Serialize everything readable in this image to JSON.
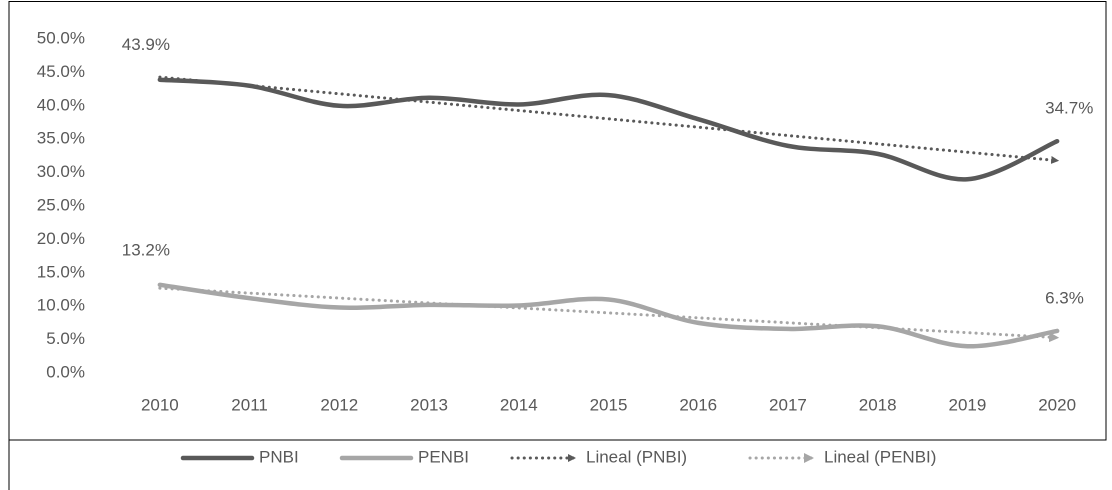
{
  "chart_data": {
    "type": "line",
    "smooth": true,
    "grid": false,
    "legend": "bottom",
    "categories": [
      "2010",
      "2011",
      "2012",
      "2013",
      "2014",
      "2015",
      "2016",
      "2017",
      "2018",
      "2019",
      "2020"
    ],
    "ylim": [
      0,
      50
    ],
    "yticks": [
      {
        "value": 0,
        "label": "0.0%"
      },
      {
        "value": 5,
        "label": "5.0%"
      },
      {
        "value": 10,
        "label": "10.0%"
      },
      {
        "value": 15,
        "label": "15.0%"
      },
      {
        "value": 20,
        "label": "20.0%"
      },
      {
        "value": 25,
        "label": "25.0%"
      },
      {
        "value": 30,
        "label": "30.0%"
      },
      {
        "value": 35,
        "label": "35.0%"
      },
      {
        "value": 40,
        "label": "40.0%"
      },
      {
        "value": 45,
        "label": "45.0%"
      },
      {
        "value": 50,
        "label": "50.0%"
      }
    ],
    "series": [
      {
        "name": "PNBI",
        "color": "#595959",
        "line_style": "solid",
        "values": [
          43.9,
          43.0,
          40.0,
          41.2,
          40.2,
          41.6,
          38.0,
          34.0,
          32.8,
          29.0,
          34.7
        ],
        "value_labels": [
          "43.9%",
          null,
          null,
          null,
          null,
          null,
          null,
          null,
          null,
          null,
          "34.7%"
        ]
      },
      {
        "name": "PENBI",
        "color": "#a6a6a6",
        "line_style": "solid",
        "values": [
          13.2,
          11.2,
          9.8,
          10.2,
          10.1,
          11.0,
          7.5,
          6.6,
          7.0,
          4.0,
          6.3
        ],
        "value_labels": [
          "13.2%",
          null,
          null,
          null,
          null,
          null,
          null,
          null,
          null,
          null,
          "6.3%"
        ]
      },
      {
        "name": "Lineal (PNBI)",
        "color": "#595959",
        "line_style": "dotted",
        "values": [
          44.3,
          43.1,
          41.8,
          40.6,
          39.3,
          38.1,
          36.8,
          35.6,
          34.3,
          33.1,
          31.8
        ]
      },
      {
        "name": "Lineal (PENBI)",
        "color": "#a6a6a6",
        "line_style": "dotted",
        "values": [
          12.7,
          12.0,
          11.2,
          10.5,
          9.7,
          9.0,
          8.3,
          7.5,
          6.8,
          6.0,
          5.3
        ]
      }
    ]
  }
}
